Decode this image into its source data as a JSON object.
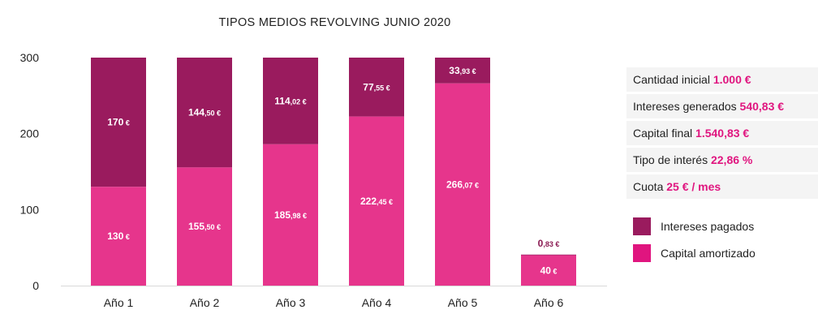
{
  "chart_data": {
    "type": "bar",
    "stacked": true,
    "title": "TIPOS MEDIOS REVOLVING JUNIO 2020",
    "categories": [
      "Año 1",
      "Año 2",
      "Año 3",
      "Año 4",
      "Año 5",
      "Año 6"
    ],
    "series": [
      {
        "name": "Capital amortizado",
        "values": [
          130,
          155.5,
          185.98,
          222.45,
          266.07,
          40
        ],
        "labels": [
          {
            "main": "130",
            "dec": "",
            "cur": "€"
          },
          {
            "main": "155",
            "dec": ",50",
            "cur": "€"
          },
          {
            "main": "185",
            "dec": ",98",
            "cur": "€"
          },
          {
            "main": "222",
            "dec": ",45",
            "cur": "€"
          },
          {
            "main": "266",
            "dec": ",07",
            "cur": "€"
          },
          {
            "main": "40",
            "dec": "",
            "cur": "€"
          }
        ]
      },
      {
        "name": "Intereses pagados",
        "values": [
          170,
          144.5,
          114.02,
          77.55,
          33.93,
          0.83
        ],
        "labels": [
          {
            "main": "170",
            "dec": "",
            "cur": "€"
          },
          {
            "main": "144",
            "dec": ",50",
            "cur": "€"
          },
          {
            "main": "114",
            "dec": ",02",
            "cur": "€"
          },
          {
            "main": "77",
            "dec": ",55",
            "cur": "€"
          },
          {
            "main": "33",
            "dec": ",93",
            "cur": "€"
          },
          {
            "main": "0",
            "dec": ",83",
            "cur": "€"
          }
        ]
      }
    ],
    "yticks": [
      "0",
      "100",
      "200",
      "300"
    ],
    "ylim": [
      0,
      300
    ],
    "xlabel": "",
    "ylabel": "",
    "grid": false,
    "legend_position": "right",
    "colors": {
      "capital": "#e6358c",
      "intereses": "#9a1b5e",
      "accent_text": "#e0157f",
      "dark_label": "#8a1a52"
    }
  },
  "info_panel": [
    {
      "label": "Cantidad inicial",
      "value": "1.000 €"
    },
    {
      "label": "Intereses generados",
      "value": "540,83 €"
    },
    {
      "label": "Capital final",
      "value": "1.540,83 €"
    },
    {
      "label": "Tipo de interés",
      "value": "22,86 %"
    },
    {
      "label": "Cuota",
      "value": "25 € / mes"
    }
  ],
  "legend": [
    {
      "label": "Intereses pagados",
      "color": "#9a1b5e"
    },
    {
      "label": "Capital amortizado",
      "color": "#e0157f"
    }
  ]
}
